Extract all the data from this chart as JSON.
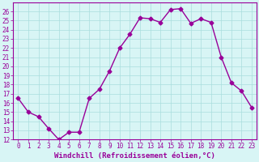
{
  "x": [
    0,
    1,
    2,
    3,
    4,
    5,
    6,
    7,
    8,
    9,
    10,
    11,
    12,
    13,
    14,
    15,
    16,
    17,
    18,
    19,
    20,
    21,
    22,
    23
  ],
  "y": [
    16.5,
    15.0,
    14.5,
    13.2,
    12.0,
    12.8,
    12.8,
    16.5,
    17.5,
    19.5,
    22.0,
    23.5,
    25.3,
    25.2,
    24.8,
    26.2,
    26.3,
    24.7,
    25.2,
    24.8,
    21.0,
    18.2,
    17.3,
    15.5
  ],
  "line_color": "#990099",
  "marker": "D",
  "markersize": 2.5,
  "linewidth": 1.0,
  "xlabel": "Windchill (Refroidissement éolien,°C)",
  "xlabel_fontsize": 6.5,
  "ylim": [
    12,
    27
  ],
  "xlim": [
    -0.5,
    23.5
  ],
  "yticks": [
    12,
    13,
    14,
    15,
    16,
    17,
    18,
    19,
    20,
    21,
    22,
    23,
    24,
    25,
    26
  ],
  "xticks": [
    0,
    1,
    2,
    3,
    4,
    5,
    6,
    7,
    8,
    9,
    10,
    11,
    12,
    13,
    14,
    15,
    16,
    17,
    18,
    19,
    20,
    21,
    22,
    23
  ],
  "tick_fontsize": 5.5,
  "bg_color": "#d8f5f5",
  "grid_color": "#aadddd",
  "spine_color": "#990099",
  "tick_color": "#990099",
  "label_color": "#990099"
}
